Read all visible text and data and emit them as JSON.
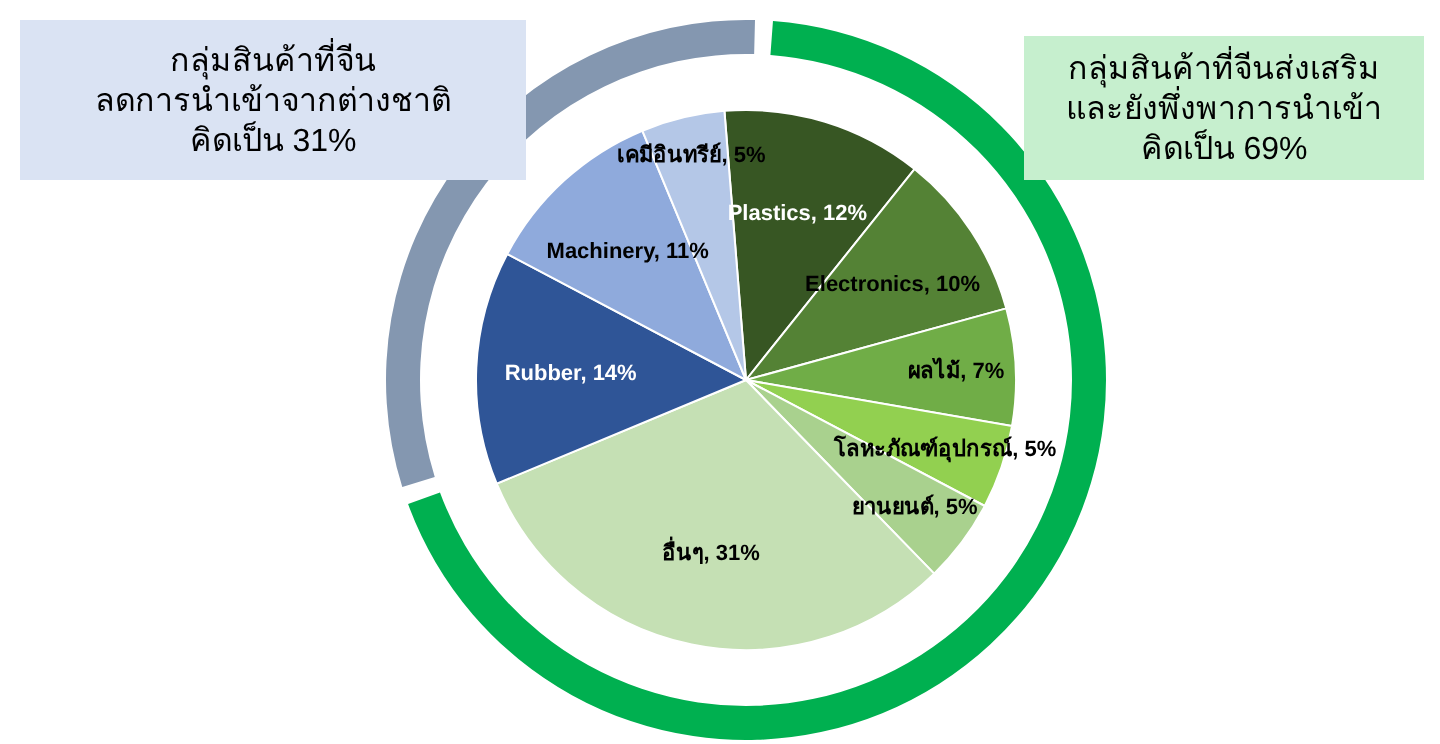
{
  "chart_data": [
    {
      "type": "donut",
      "categories": [
        "กลุ่มสินค้าที่จีนส่งเสริม\nและยังพึ่งพาการนำเข้า\nคิดเป็น 69%",
        "กลุ่มสินค้าที่จีน\nลดการนำเข้าจากต่างชาติ\nคิดเป็น 31%"
      ],
      "values": [
        69,
        31
      ],
      "colors": [
        "#00b050",
        "#8497b0"
      ]
    },
    {
      "type": "pie",
      "categories": [
        "Plastics",
        "Electronics",
        "ผลไม้",
        "โลหะภัณฑ์อุปกรณ์",
        "ยานยนต์",
        "อื่นๆ",
        "Rubber",
        "Machinery",
        "เคมีอินทรีย์"
      ],
      "value_labels": [
        "12%",
        "10%",
        "7%",
        "5%",
        "5%",
        "31%",
        "14%",
        "11%",
        "5%"
      ],
      "values": [
        12,
        10,
        7,
        5,
        5,
        31,
        14,
        11,
        5
      ],
      "colors": [
        "#375623",
        "#548235",
        "#70ad47",
        "#92d050",
        "#a9d18e",
        "#c5e0b4",
        "#2f5597",
        "#8faadc",
        "#b4c7e7"
      ]
    }
  ]
}
